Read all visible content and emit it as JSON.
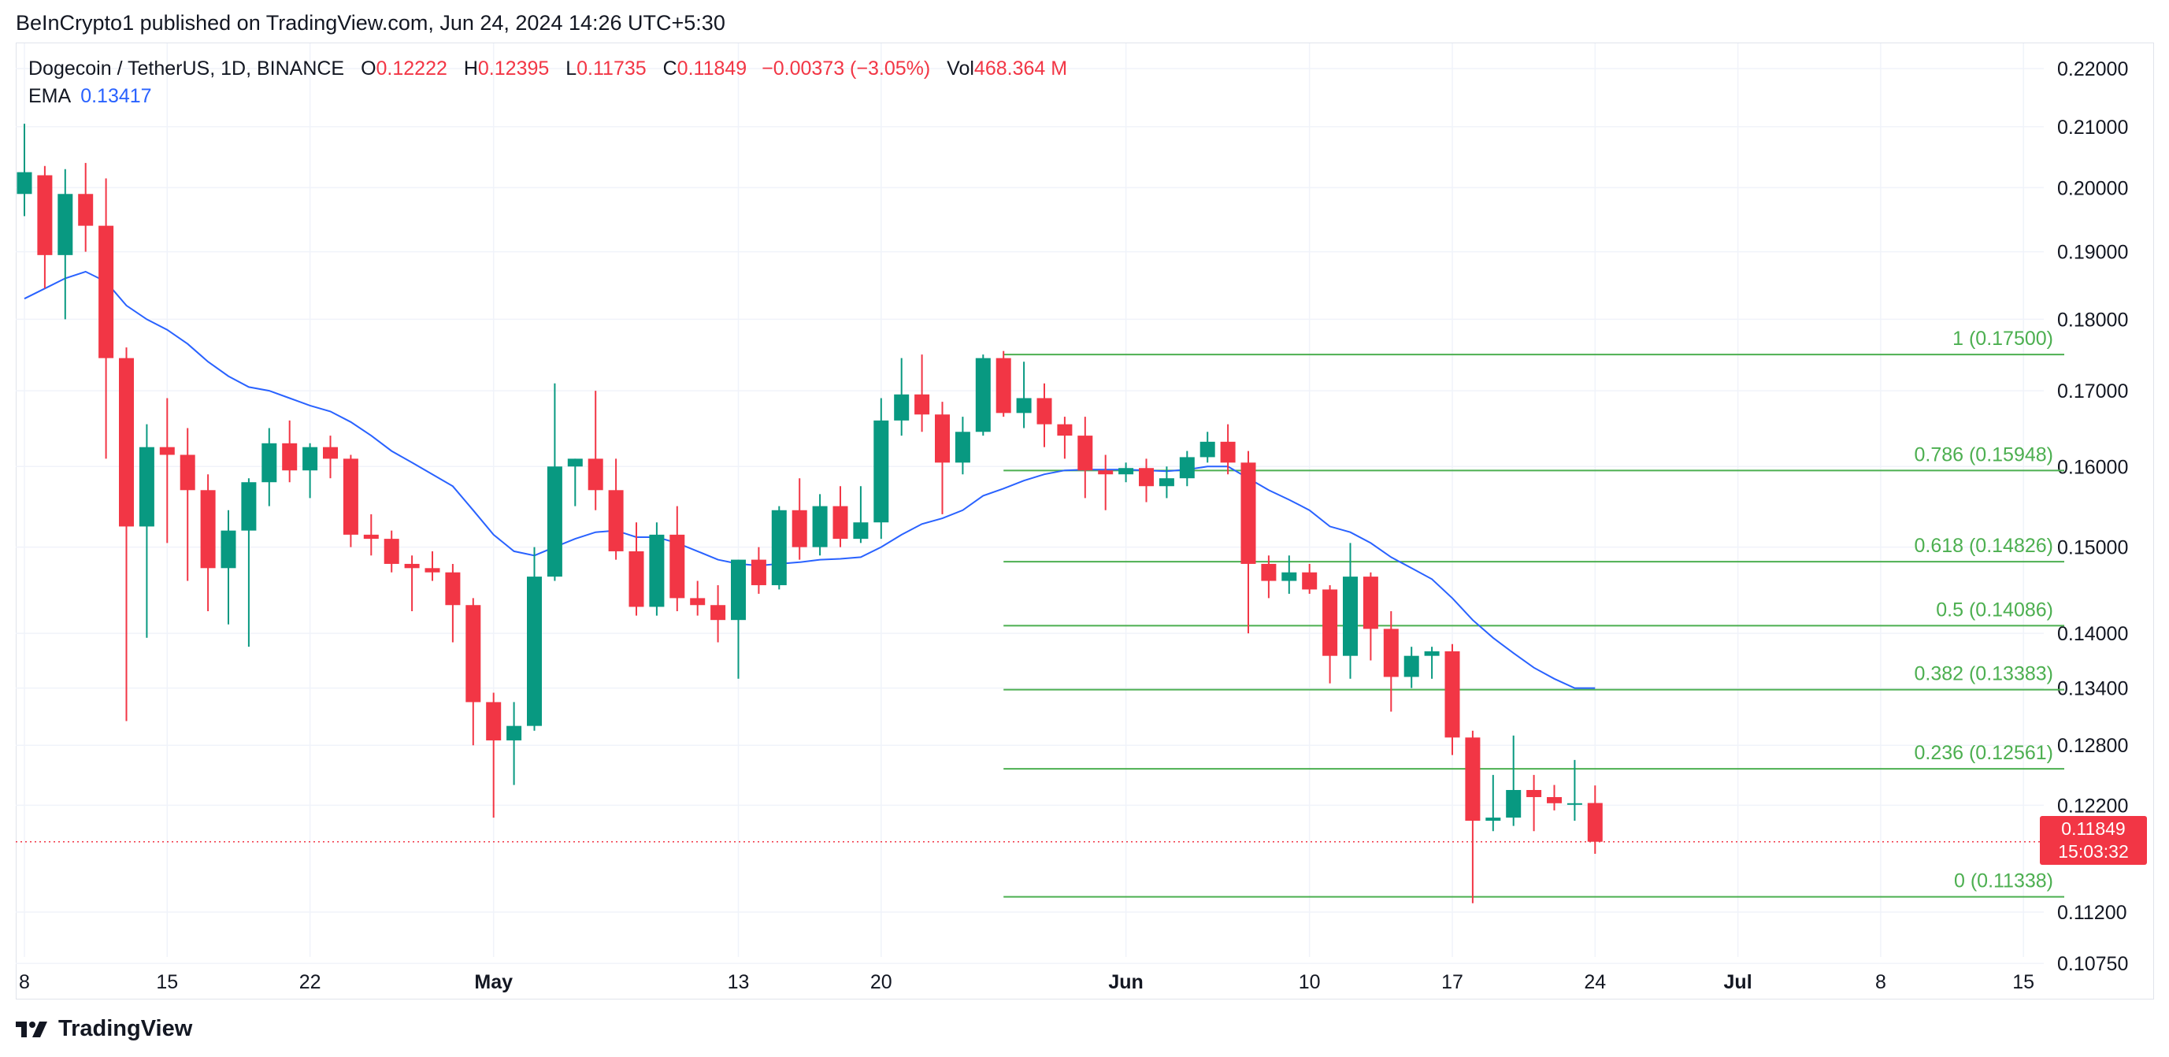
{
  "header": {
    "published": "BeInCrypto1 published on TradingView.com, Jun 24, 2024 14:26 UTC+5:30"
  },
  "legend": {
    "symbol": "Dogecoin / TetherUS, 1D, BINANCE",
    "open_label": "O",
    "open": "0.12222",
    "high_label": "H",
    "high": "0.12395",
    "low_label": "L",
    "low": "0.11735",
    "close_label": "C",
    "close": "0.11849",
    "change": "−0.00373 (−3.05%)",
    "vol_label": "Vol",
    "vol": "468.364 M",
    "ema_label": "EMA",
    "ema_value": "0.13417"
  },
  "price_badge": {
    "price": "0.11849",
    "countdown": "15:03:32"
  },
  "branding": {
    "name": "TradingView"
  },
  "colors": {
    "up": "#089981",
    "down": "#f23645",
    "ema": "#2962ff",
    "fib": "#4caf50",
    "grid": "#f0f3fa",
    "text": "#131722"
  },
  "chart_data": {
    "type": "candlestick",
    "yaxis_scale": "log",
    "ylim": [
      0.1045,
      0.2245
    ],
    "yticks": [
      "0.22000",
      "0.21000",
      "0.20000",
      "0.19000",
      "0.18000",
      "0.17000",
      "0.16000",
      "0.15000",
      "0.14000",
      "0.13400",
      "0.12800",
      "0.12200",
      "0.11849",
      "0.11200",
      "0.10750"
    ],
    "xticks": [
      {
        "label": "8",
        "date": "2024-04-08",
        "bold": false
      },
      {
        "label": "15",
        "date": "2024-04-15",
        "bold": false
      },
      {
        "label": "22",
        "date": "2024-04-22",
        "bold": false
      },
      {
        "label": "May",
        "date": "2024-05-01",
        "bold": true
      },
      {
        "label": "13",
        "date": "2024-05-13",
        "bold": false
      },
      {
        "label": "20",
        "date": "2024-05-20",
        "bold": false
      },
      {
        "label": "Jun",
        "date": "2024-06-01",
        "bold": true
      },
      {
        "label": "10",
        "date": "2024-06-10",
        "bold": false
      },
      {
        "label": "17",
        "date": "2024-06-17",
        "bold": false
      },
      {
        "label": "24",
        "date": "2024-06-24",
        "bold": false
      },
      {
        "label": "Jul",
        "date": "2024-07-01",
        "bold": true
      },
      {
        "label": "8",
        "date": "2024-07-08",
        "bold": false
      },
      {
        "label": "15",
        "date": "2024-07-15",
        "bold": false
      }
    ],
    "candles": [
      {
        "date": "2024-04-08",
        "o": 0.199,
        "h": 0.2105,
        "l": 0.1955,
        "c": 0.2025
      },
      {
        "date": "2024-04-09",
        "o": 0.202,
        "h": 0.2035,
        "l": 0.1845,
        "c": 0.1895
      },
      {
        "date": "2024-04-10",
        "o": 0.1895,
        "h": 0.203,
        "l": 0.18,
        "c": 0.199
      },
      {
        "date": "2024-04-11",
        "o": 0.199,
        "h": 0.204,
        "l": 0.19,
        "c": 0.194
      },
      {
        "date": "2024-04-12",
        "o": 0.194,
        "h": 0.2015,
        "l": 0.161,
        "c": 0.1745
      },
      {
        "date": "2024-04-13",
        "o": 0.1745,
        "h": 0.176,
        "l": 0.1305,
        "c": 0.1525
      },
      {
        "date": "2024-04-14",
        "o": 0.1525,
        "h": 0.1655,
        "l": 0.1395,
        "c": 0.1625
      },
      {
        "date": "2024-04-15",
        "o": 0.1625,
        "h": 0.169,
        "l": 0.1505,
        "c": 0.1615
      },
      {
        "date": "2024-04-16",
        "o": 0.1615,
        "h": 0.165,
        "l": 0.146,
        "c": 0.157
      },
      {
        "date": "2024-04-17",
        "o": 0.157,
        "h": 0.159,
        "l": 0.1425,
        "c": 0.1475
      },
      {
        "date": "2024-04-18",
        "o": 0.1475,
        "h": 0.1545,
        "l": 0.141,
        "c": 0.152
      },
      {
        "date": "2024-04-19",
        "o": 0.152,
        "h": 0.1585,
        "l": 0.1385,
        "c": 0.158
      },
      {
        "date": "2024-04-20",
        "o": 0.158,
        "h": 0.165,
        "l": 0.155,
        "c": 0.163
      },
      {
        "date": "2024-04-21",
        "o": 0.163,
        "h": 0.166,
        "l": 0.158,
        "c": 0.1595
      },
      {
        "date": "2024-04-22",
        "o": 0.1595,
        "h": 0.163,
        "l": 0.156,
        "c": 0.1625
      },
      {
        "date": "2024-04-23",
        "o": 0.1625,
        "h": 0.164,
        "l": 0.1585,
        "c": 0.161
      },
      {
        "date": "2024-04-24",
        "o": 0.161,
        "h": 0.1615,
        "l": 0.15,
        "c": 0.1515
      },
      {
        "date": "2024-04-25",
        "o": 0.1515,
        "h": 0.154,
        "l": 0.149,
        "c": 0.151
      },
      {
        "date": "2024-04-26",
        "o": 0.151,
        "h": 0.152,
        "l": 0.147,
        "c": 0.148
      },
      {
        "date": "2024-04-27",
        "o": 0.148,
        "h": 0.149,
        "l": 0.1425,
        "c": 0.1475
      },
      {
        "date": "2024-04-28",
        "o": 0.1475,
        "h": 0.1495,
        "l": 0.146,
        "c": 0.147
      },
      {
        "date": "2024-04-29",
        "o": 0.147,
        "h": 0.148,
        "l": 0.139,
        "c": 0.1432
      },
      {
        "date": "2024-04-30",
        "o": 0.1432,
        "h": 0.144,
        "l": 0.128,
        "c": 0.1325
      },
      {
        "date": "2024-05-01",
        "o": 0.1325,
        "h": 0.1335,
        "l": 0.1208,
        "c": 0.1285
      },
      {
        "date": "2024-05-02",
        "o": 0.1285,
        "h": 0.1325,
        "l": 0.124,
        "c": 0.13
      },
      {
        "date": "2024-05-03",
        "o": 0.13,
        "h": 0.15,
        "l": 0.1295,
        "c": 0.1465
      },
      {
        "date": "2024-05-04",
        "o": 0.1465,
        "h": 0.171,
        "l": 0.146,
        "c": 0.16
      },
      {
        "date": "2024-05-05",
        "o": 0.16,
        "h": 0.161,
        "l": 0.155,
        "c": 0.161
      },
      {
        "date": "2024-05-06",
        "o": 0.161,
        "h": 0.17,
        "l": 0.1545,
        "c": 0.157
      },
      {
        "date": "2024-05-07",
        "o": 0.157,
        "h": 0.161,
        "l": 0.1485,
        "c": 0.1495
      },
      {
        "date": "2024-05-08",
        "o": 0.1495,
        "h": 0.153,
        "l": 0.142,
        "c": 0.143
      },
      {
        "date": "2024-05-09",
        "o": 0.143,
        "h": 0.153,
        "l": 0.142,
        "c": 0.1515
      },
      {
        "date": "2024-05-10",
        "o": 0.1515,
        "h": 0.155,
        "l": 0.1425,
        "c": 0.144
      },
      {
        "date": "2024-05-11",
        "o": 0.144,
        "h": 0.146,
        "l": 0.142,
        "c": 0.1432
      },
      {
        "date": "2024-05-12",
        "o": 0.1432,
        "h": 0.1455,
        "l": 0.139,
        "c": 0.1415
      },
      {
        "date": "2024-05-13",
        "o": 0.1415,
        "h": 0.1485,
        "l": 0.135,
        "c": 0.1485
      },
      {
        "date": "2024-05-14",
        "o": 0.1485,
        "h": 0.15,
        "l": 0.1445,
        "c": 0.1455
      },
      {
        "date": "2024-05-15",
        "o": 0.1455,
        "h": 0.155,
        "l": 0.145,
        "c": 0.1545
      },
      {
        "date": "2024-05-16",
        "o": 0.1545,
        "h": 0.1585,
        "l": 0.1485,
        "c": 0.15
      },
      {
        "date": "2024-05-17",
        "o": 0.15,
        "h": 0.1565,
        "l": 0.149,
        "c": 0.155
      },
      {
        "date": "2024-05-18",
        "o": 0.155,
        "h": 0.1575,
        "l": 0.15,
        "c": 0.151
      },
      {
        "date": "2024-05-19",
        "o": 0.151,
        "h": 0.1575,
        "l": 0.1505,
        "c": 0.153
      },
      {
        "date": "2024-05-20",
        "o": 0.153,
        "h": 0.169,
        "l": 0.151,
        "c": 0.166
      },
      {
        "date": "2024-05-21",
        "o": 0.166,
        "h": 0.1745,
        "l": 0.164,
        "c": 0.1695
      },
      {
        "date": "2024-05-22",
        "o": 0.1695,
        "h": 0.175,
        "l": 0.1645,
        "c": 0.1668
      },
      {
        "date": "2024-05-23",
        "o": 0.1668,
        "h": 0.1685,
        "l": 0.154,
        "c": 0.1605
      },
      {
        "date": "2024-05-24",
        "o": 0.1605,
        "h": 0.1665,
        "l": 0.159,
        "c": 0.1645
      },
      {
        "date": "2024-05-25",
        "o": 0.1645,
        "h": 0.175,
        "l": 0.164,
        "c": 0.1745
      },
      {
        "date": "2024-05-26",
        "o": 0.1745,
        "h": 0.1755,
        "l": 0.1665,
        "c": 0.167
      },
      {
        "date": "2024-05-27",
        "o": 0.167,
        "h": 0.174,
        "l": 0.165,
        "c": 0.169
      },
      {
        "date": "2024-05-28",
        "o": 0.169,
        "h": 0.171,
        "l": 0.1625,
        "c": 0.1655
      },
      {
        "date": "2024-05-29",
        "o": 0.1655,
        "h": 0.1665,
        "l": 0.161,
        "c": 0.164
      },
      {
        "date": "2024-05-30",
        "o": 0.164,
        "h": 0.1665,
        "l": 0.156,
        "c": 0.1595
      },
      {
        "date": "2024-05-31",
        "o": 0.1595,
        "h": 0.1615,
        "l": 0.1545,
        "c": 0.159
      },
      {
        "date": "2024-06-01",
        "o": 0.159,
        "h": 0.1605,
        "l": 0.158,
        "c": 0.1598
      },
      {
        "date": "2024-06-02",
        "o": 0.1598,
        "h": 0.161,
        "l": 0.1555,
        "c": 0.1575
      },
      {
        "date": "2024-06-03",
        "o": 0.1575,
        "h": 0.16,
        "l": 0.156,
        "c": 0.1585
      },
      {
        "date": "2024-06-04",
        "o": 0.1585,
        "h": 0.162,
        "l": 0.1575,
        "c": 0.1612
      },
      {
        "date": "2024-06-05",
        "o": 0.1612,
        "h": 0.1645,
        "l": 0.1605,
        "c": 0.1632
      },
      {
        "date": "2024-06-06",
        "o": 0.1632,
        "h": 0.1655,
        "l": 0.159,
        "c": 0.1605
      },
      {
        "date": "2024-06-07",
        "o": 0.1605,
        "h": 0.162,
        "l": 0.14,
        "c": 0.148
      },
      {
        "date": "2024-06-08",
        "o": 0.148,
        "h": 0.149,
        "l": 0.144,
        "c": 0.146
      },
      {
        "date": "2024-06-09",
        "o": 0.146,
        "h": 0.149,
        "l": 0.1445,
        "c": 0.147
      },
      {
        "date": "2024-06-10",
        "o": 0.147,
        "h": 0.148,
        "l": 0.1445,
        "c": 0.145
      },
      {
        "date": "2024-06-11",
        "o": 0.145,
        "h": 0.1455,
        "l": 0.1345,
        "c": 0.1375
      },
      {
        "date": "2024-06-12",
        "o": 0.1375,
        "h": 0.1505,
        "l": 0.135,
        "c": 0.1465
      },
      {
        "date": "2024-06-13",
        "o": 0.1465,
        "h": 0.147,
        "l": 0.137,
        "c": 0.1405
      },
      {
        "date": "2024-06-14",
        "o": 0.1405,
        "h": 0.1425,
        "l": 0.1315,
        "c": 0.1352
      },
      {
        "date": "2024-06-15",
        "o": 0.1352,
        "h": 0.1385,
        "l": 0.134,
        "c": 0.1375
      },
      {
        "date": "2024-06-16",
        "o": 0.1375,
        "h": 0.1385,
        "l": 0.135,
        "c": 0.138
      },
      {
        "date": "2024-06-17",
        "o": 0.138,
        "h": 0.1388,
        "l": 0.127,
        "c": 0.1288
      },
      {
        "date": "2024-06-18",
        "o": 0.1288,
        "h": 0.1295,
        "l": 0.1128,
        "c": 0.1205
      },
      {
        "date": "2024-06-19",
        "o": 0.1205,
        "h": 0.125,
        "l": 0.1195,
        "c": 0.1208
      },
      {
        "date": "2024-06-20",
        "o": 0.1208,
        "h": 0.129,
        "l": 0.12,
        "c": 0.1235
      },
      {
        "date": "2024-06-21",
        "o": 0.1235,
        "h": 0.125,
        "l": 0.1195,
        "c": 0.1228
      },
      {
        "date": "2024-06-22",
        "o": 0.1228,
        "h": 0.124,
        "l": 0.1215,
        "c": 0.1222
      },
      {
        "date": "2024-06-23",
        "o": 0.1222,
        "h": 0.1265,
        "l": 0.1205,
        "c": 0.1222
      },
      {
        "date": "2024-06-24",
        "o": 0.12222,
        "h": 0.12395,
        "l": 0.11735,
        "c": 0.11849
      }
    ],
    "ema": [
      {
        "date": "2024-04-08",
        "v": 0.183
      },
      {
        "date": "2024-04-09",
        "v": 0.1845
      },
      {
        "date": "2024-04-10",
        "v": 0.186
      },
      {
        "date": "2024-04-11",
        "v": 0.187
      },
      {
        "date": "2024-04-12",
        "v": 0.1855
      },
      {
        "date": "2024-04-13",
        "v": 0.182
      },
      {
        "date": "2024-04-14",
        "v": 0.18
      },
      {
        "date": "2024-04-15",
        "v": 0.1785
      },
      {
        "date": "2024-04-16",
        "v": 0.1765
      },
      {
        "date": "2024-04-17",
        "v": 0.174
      },
      {
        "date": "2024-04-18",
        "v": 0.172
      },
      {
        "date": "2024-04-19",
        "v": 0.1705
      },
      {
        "date": "2024-04-20",
        "v": 0.17
      },
      {
        "date": "2024-04-21",
        "v": 0.169
      },
      {
        "date": "2024-04-22",
        "v": 0.168
      },
      {
        "date": "2024-04-23",
        "v": 0.1672
      },
      {
        "date": "2024-04-24",
        "v": 0.1658
      },
      {
        "date": "2024-04-25",
        "v": 0.164
      },
      {
        "date": "2024-04-26",
        "v": 0.162
      },
      {
        "date": "2024-04-27",
        "v": 0.1605
      },
      {
        "date": "2024-04-28",
        "v": 0.159
      },
      {
        "date": "2024-04-29",
        "v": 0.1575
      },
      {
        "date": "2024-04-30",
        "v": 0.1545
      },
      {
        "date": "2024-05-01",
        "v": 0.1515
      },
      {
        "date": "2024-05-02",
        "v": 0.1495
      },
      {
        "date": "2024-05-03",
        "v": 0.149
      },
      {
        "date": "2024-05-04",
        "v": 0.15
      },
      {
        "date": "2024-05-05",
        "v": 0.151
      },
      {
        "date": "2024-05-06",
        "v": 0.1518
      },
      {
        "date": "2024-05-07",
        "v": 0.152
      },
      {
        "date": "2024-05-08",
        "v": 0.1512
      },
      {
        "date": "2024-05-09",
        "v": 0.1512
      },
      {
        "date": "2024-05-10",
        "v": 0.1505
      },
      {
        "date": "2024-05-11",
        "v": 0.1495
      },
      {
        "date": "2024-05-12",
        "v": 0.1485
      },
      {
        "date": "2024-05-13",
        "v": 0.148
      },
      {
        "date": "2024-05-14",
        "v": 0.1478
      },
      {
        "date": "2024-05-15",
        "v": 0.148
      },
      {
        "date": "2024-05-16",
        "v": 0.1482
      },
      {
        "date": "2024-05-17",
        "v": 0.1485
      },
      {
        "date": "2024-05-18",
        "v": 0.1486
      },
      {
        "date": "2024-05-19",
        "v": 0.1488
      },
      {
        "date": "2024-05-20",
        "v": 0.15
      },
      {
        "date": "2024-05-21",
        "v": 0.1515
      },
      {
        "date": "2024-05-22",
        "v": 0.1528
      },
      {
        "date": "2024-05-23",
        "v": 0.1535
      },
      {
        "date": "2024-05-24",
        "v": 0.1545
      },
      {
        "date": "2024-05-25",
        "v": 0.1563
      },
      {
        "date": "2024-05-26",
        "v": 0.1572
      },
      {
        "date": "2024-05-27",
        "v": 0.1582
      },
      {
        "date": "2024-05-28",
        "v": 0.159
      },
      {
        "date": "2024-05-29",
        "v": 0.1595
      },
      {
        "date": "2024-05-30",
        "v": 0.1596
      },
      {
        "date": "2024-05-31",
        "v": 0.1596
      },
      {
        "date": "2024-06-01",
        "v": 0.1596
      },
      {
        "date": "2024-06-02",
        "v": 0.1595
      },
      {
        "date": "2024-06-03",
        "v": 0.1594
      },
      {
        "date": "2024-06-04",
        "v": 0.1596
      },
      {
        "date": "2024-06-05",
        "v": 0.16
      },
      {
        "date": "2024-06-06",
        "v": 0.16
      },
      {
        "date": "2024-06-07",
        "v": 0.1585
      },
      {
        "date": "2024-06-08",
        "v": 0.157
      },
      {
        "date": "2024-06-09",
        "v": 0.1558
      },
      {
        "date": "2024-06-10",
        "v": 0.1545
      },
      {
        "date": "2024-06-11",
        "v": 0.1525
      },
      {
        "date": "2024-06-12",
        "v": 0.1518
      },
      {
        "date": "2024-06-13",
        "v": 0.1505
      },
      {
        "date": "2024-06-14",
        "v": 0.1488
      },
      {
        "date": "2024-06-15",
        "v": 0.1475
      },
      {
        "date": "2024-06-16",
        "v": 0.1462
      },
      {
        "date": "2024-06-17",
        "v": 0.144
      },
      {
        "date": "2024-06-18",
        "v": 0.1415
      },
      {
        "date": "2024-06-19",
        "v": 0.1395
      },
      {
        "date": "2024-06-20",
        "v": 0.1378
      },
      {
        "date": "2024-06-21",
        "v": 0.1362
      },
      {
        "date": "2024-06-22",
        "v": 0.135
      },
      {
        "date": "2024-06-23",
        "v": 0.134
      },
      {
        "date": "2024-06-24",
        "v": 0.134
      }
    ],
    "fibonacci": {
      "start_date": "2024-05-26",
      "end_date": "2024-07-17",
      "levels": [
        {
          "ratio": "1",
          "price": 0.175,
          "label": "1 (0.17500)"
        },
        {
          "ratio": "0.786",
          "price": 0.15948,
          "label": "0.786 (0.15948)"
        },
        {
          "ratio": "0.618",
          "price": 0.14826,
          "label": "0.618 (0.14826)"
        },
        {
          "ratio": "0.5",
          "price": 0.14086,
          "label": "0.5 (0.14086)"
        },
        {
          "ratio": "0.382",
          "price": 0.13383,
          "label": "0.382 (0.13383)"
        },
        {
          "ratio": "0.236",
          "price": 0.12561,
          "label": "0.236 (0.12561)"
        },
        {
          "ratio": "0",
          "price": 0.11338,
          "label": "0 (0.11338)"
        }
      ]
    },
    "last_price": 0.11849
  }
}
